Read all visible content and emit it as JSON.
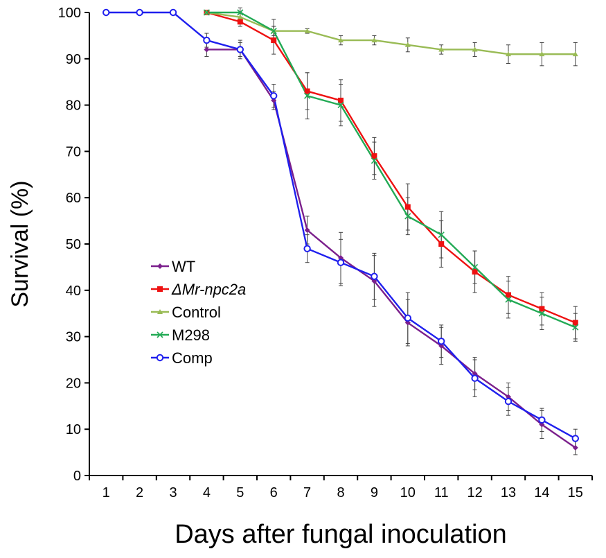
{
  "chart_data": {
    "type": "line",
    "title": "",
    "xlabel": "Days after fungal inoculation",
    "ylabel": "Survival (%)",
    "x": [
      1,
      2,
      3,
      4,
      5,
      6,
      7,
      8,
      9,
      10,
      11,
      12,
      13,
      14,
      15
    ],
    "xlim": [
      0.5,
      15.5
    ],
    "ylim": [
      0,
      100
    ],
    "x_ticks": [
      1,
      2,
      3,
      4,
      5,
      6,
      7,
      8,
      9,
      10,
      11,
      12,
      13,
      14,
      15
    ],
    "y_ticks": [
      0,
      10,
      20,
      30,
      40,
      50,
      60,
      70,
      80,
      90,
      100
    ],
    "grid": false,
    "legend_position": "left-middle",
    "error_bar_color": "#404040",
    "series": [
      {
        "name": "WT",
        "italic": false,
        "color": "#7b1f8c",
        "marker": "diamond",
        "x": [
          4,
          5,
          6,
          7,
          8,
          9,
          10,
          11,
          12,
          13,
          14,
          15
        ],
        "values": [
          92,
          92,
          81,
          53,
          47,
          42,
          33,
          28,
          22,
          17,
          11,
          6
        ],
        "errors": [
          1.5,
          1.5,
          2.0,
          3.0,
          5.5,
          5.5,
          5.0,
          4.0,
          3.5,
          3.0,
          3.0,
          1.5
        ]
      },
      {
        "name": "ΔMr-npc2a",
        "italic": true,
        "color": "#ee1111",
        "marker": "square",
        "x": [
          4,
          5,
          6,
          7,
          8,
          9,
          10,
          11,
          12,
          13,
          14,
          15
        ],
        "values": [
          100,
          98,
          94,
          83,
          81,
          69,
          58,
          50,
          44,
          39,
          36,
          33
        ],
        "errors": [
          0.5,
          1.0,
          3.0,
          4.0,
          4.5,
          4.0,
          5.0,
          5.0,
          4.5,
          4.0,
          3.5,
          3.5
        ]
      },
      {
        "name": "Control",
        "italic": false,
        "color": "#99bb55",
        "marker": "triangle",
        "x": [
          4,
          5,
          6,
          7,
          8,
          9,
          10,
          11,
          12,
          13,
          14,
          15
        ],
        "values": [
          100,
          99,
          96,
          96,
          94,
          94,
          93,
          92,
          92,
          91,
          91,
          91
        ],
        "errors": [
          0.5,
          1.0,
          1.0,
          0.5,
          1.0,
          1.0,
          1.5,
          1.0,
          1.5,
          2.0,
          2.5,
          2.5
        ]
      },
      {
        "name": "M298",
        "italic": false,
        "color": "#22aa55",
        "marker": "x",
        "x": [
          4,
          5,
          6,
          7,
          8,
          9,
          10,
          11,
          12,
          13,
          14,
          15
        ],
        "values": [
          100,
          100,
          96,
          82,
          80,
          68,
          56,
          52,
          45,
          38,
          35,
          32
        ],
        "errors": [
          0.5,
          1.0,
          2.5,
          5.0,
          4.5,
          4.0,
          4.0,
          5.0,
          3.5,
          4.0,
          3.5,
          3.0
        ]
      },
      {
        "name": "Comp",
        "italic": false,
        "color": "#1f1fee",
        "marker": "circle",
        "x": [
          1,
          2,
          3,
          4,
          5,
          6,
          7,
          8,
          9,
          10,
          11,
          12,
          13,
          14,
          15
        ],
        "values": [
          100,
          100,
          100,
          94,
          92,
          82,
          49,
          46,
          43,
          34,
          29,
          21,
          16,
          12,
          8
        ],
        "errors": [
          0,
          0,
          0,
          1.5,
          2.0,
          2.5,
          3.0,
          5.0,
          5.0,
          5.5,
          3.5,
          4.0,
          3.0,
          2.5,
          2.0
        ]
      }
    ]
  }
}
